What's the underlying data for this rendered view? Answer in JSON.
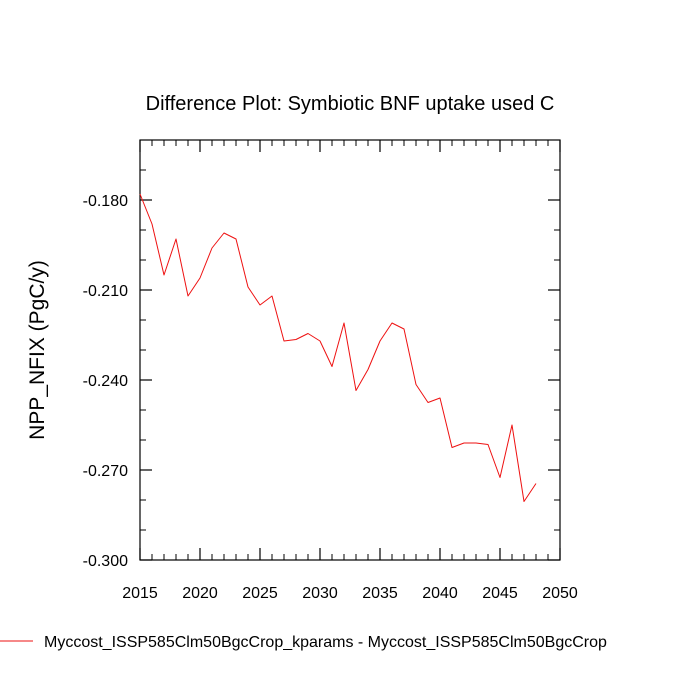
{
  "chart_data": {
    "type": "line",
    "title": "Difference Plot: Symbiotic BNF uptake used C",
    "xlabel": "",
    "ylabel": "NPP_NFIX  (PgC/y)",
    "xlim": [
      2015,
      2050
    ],
    "ylim": [
      -0.3,
      -0.16
    ],
    "x_ticks": [
      2015,
      2020,
      2025,
      2030,
      2035,
      2040,
      2045,
      2050
    ],
    "x_tick_labels": [
      "2015",
      "2020",
      "2025",
      "2030",
      "2035",
      "2040",
      "2045",
      "2050"
    ],
    "x_minor_step": 1,
    "y_ticks": [
      -0.3,
      -0.27,
      -0.24,
      -0.21,
      -0.18
    ],
    "y_tick_labels": [
      "-0.300",
      "-0.270",
      "-0.240",
      "-0.210",
      "-0.180"
    ],
    "y_minor_step": 0.01,
    "grid": false,
    "legend_position": "bottom-left",
    "series": [
      {
        "name": "Myccost_ISSP585Clm50BgcCrop_kparams - Myccost_ISSP585Clm50BgcCrop",
        "color": "#ee1111",
        "x": [
          2015,
          2016,
          2017,
          2018,
          2019,
          2020,
          2021,
          2022,
          2023,
          2024,
          2025,
          2026,
          2027,
          2028,
          2029,
          2030,
          2031,
          2032,
          2033,
          2034,
          2035,
          2036,
          2037,
          2038,
          2039,
          2040,
          2041,
          2042,
          2043,
          2044,
          2045,
          2046,
          2047,
          2048
        ],
        "values": [
          -0.178,
          -0.188,
          -0.205,
          -0.193,
          -0.212,
          -0.206,
          -0.196,
          -0.191,
          -0.193,
          -0.209,
          -0.215,
          -0.212,
          -0.227,
          -0.2265,
          -0.2245,
          -0.227,
          -0.2355,
          -0.221,
          -0.2435,
          -0.2365,
          -0.227,
          -0.221,
          -0.223,
          -0.2415,
          -0.2475,
          -0.246,
          -0.2625,
          -0.261,
          -0.261,
          -0.2615,
          -0.2725,
          -0.255,
          -0.2805,
          -0.2745
        ]
      }
    ]
  }
}
